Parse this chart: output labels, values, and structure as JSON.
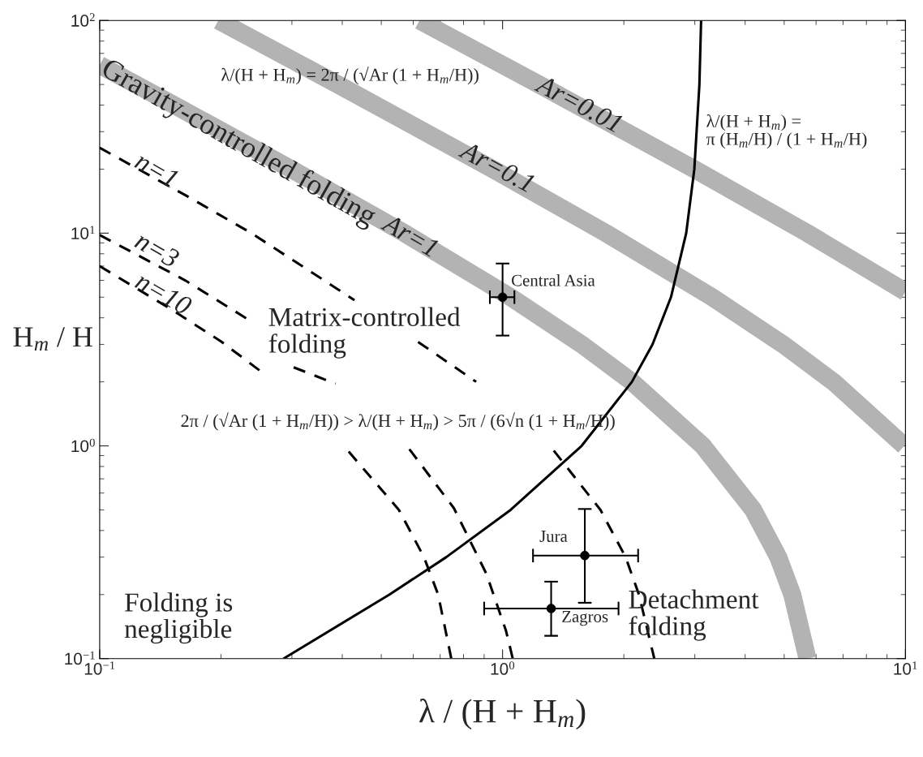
{
  "chart_data": {
    "type": "line",
    "xlabel": "λ / (H + H$_{m}$)",
    "ylabel": "H$_{m}$ / H",
    "log": "xy",
    "xlim": [
      0.1,
      10
    ],
    "ylim": [
      0.1,
      100
    ],
    "xticks": [
      {
        "value": 0.1,
        "label": "10$^{−1}$"
      },
      {
        "value": 1,
        "label": "10$^{0}$"
      },
      {
        "value": 10,
        "label": "10$^{1}$"
      }
    ],
    "yticks": [
      {
        "value": 0.1,
        "label": "10$^{−1}$"
      },
      {
        "value": 1,
        "label": "10$^{0}$"
      },
      {
        "value": 10,
        "label": "10$^{1}$"
      },
      {
        "value": 100,
        "label": "10$^{2}$"
      }
    ],
    "grid": false,
    "series": [
      {
        "name": "Ar=1",
        "color": "#b3b3b3",
        "line_style": "solid",
        "x": [
          0.1,
          0.153,
          0.299,
          0.571,
          1.047,
          1.571,
          2.094,
          3.142,
          4.189,
          4.833,
          5.236,
          5.712
        ],
        "values": [
          61.8,
          40,
          20,
          10,
          5,
          3,
          2,
          1,
          0.5,
          0.3,
          0.2,
          0.1
        ]
      },
      {
        "name": "Ar=0.1",
        "color": "#b3b3b3",
        "line_style": "solid",
        "x": [
          0.197,
          0.39,
          0.946,
          1.806,
          3.312,
          4.967,
          6.623,
          9.935
        ],
        "values": [
          100,
          50,
          20,
          10,
          5,
          3,
          2,
          1
        ]
      },
      {
        "name": "Ar=0.01",
        "color": "#b3b3b3",
        "line_style": "solid",
        "x": [
          0.622,
          1.232,
          2.992,
          5.712,
          10
        ],
        "values": [
          100,
          50,
          20,
          10,
          5.3
        ]
      },
      {
        "name": "n=1",
        "color": "#000000",
        "line_style": "dashed",
        "x": [
          0.1,
          0.164,
          0.238,
          0.429,
          0.52,
          0.617,
          0.86,
          1.1,
          1.34,
          1.75,
          2.02,
          2.18,
          2.38
        ],
        "values": [
          25.2,
          15,
          10,
          4.84,
          null,
          3.08,
          2.0,
          null,
          0.95,
          0.5,
          0.3,
          0.2,
          0.1
        ]
      },
      {
        "name": "n=3",
        "color": "#000000",
        "line_style": "dashed",
        "x": [
          0.1,
          0.163,
          0.233,
          0.27,
          0.303,
          0.385,
          0.5,
          0.587,
          0.757,
          0.912,
          1.02,
          1.06
        ],
        "values": [
          9.8,
          6,
          3.94,
          null,
          2.34,
          1.96,
          null,
          0.965,
          0.51,
          0.25,
          0.135,
          0.1
        ]
      },
      {
        "name": "n=10",
        "color": "#000000",
        "line_style": "dashed",
        "x": [
          0.1,
          0.15,
          0.2,
          0.256,
          0.35,
          0.415,
          0.553,
          0.638,
          0.692,
          0.746
        ],
        "values": [
          7.0,
          4.4,
          3.1,
          2.18,
          null,
          0.94,
          0.5,
          0.3,
          0.2,
          0.1
        ]
      },
      {
        "color": "#000000",
        "line_style": "solid",
        "x": [
          0.286,
          0.524,
          0.725,
          1.047,
          1.571,
          2.094,
          2.356,
          2.618,
          2.856,
          2.992,
          3.08,
          3.11
        ],
        "values": [
          0.1,
          0.2,
          0.3,
          0.5,
          1,
          2,
          3,
          5,
          10,
          20,
          50,
          100
        ]
      },
      {
        "name": "Central Asia",
        "type": "scatter",
        "marker": "circle",
        "color": "#000000",
        "x": [
          1.0
        ],
        "values": [
          5
        ],
        "errors": [
          [
            3.3,
            7.2
          ]
        ],
        "xerrors": [
          [
            0.93,
            1.07
          ]
        ]
      },
      {
        "name": "Jura",
        "type": "scatter",
        "marker": "circle",
        "color": "#000000",
        "x": [
          1.6
        ],
        "values": [
          0.305
        ],
        "errors": [
          [
            0.183,
            0.505
          ]
        ],
        "xerrors": [
          [
            1.19,
            2.17
          ]
        ]
      },
      {
        "name": "Zagros",
        "type": "scatter",
        "marker": "circle",
        "color": "#000000",
        "x": [
          1.32
        ],
        "values": [
          0.172
        ],
        "errors": [
          [
            0.128,
            0.23
          ]
        ],
        "xerrors": [
          [
            0.9,
            1.94
          ]
        ]
      }
    ],
    "annotations": [
      "Gravity-controlled folding",
      "Matrix-controlled\nfolding",
      "Folding is\nnegligible",
      "Detachment\nfolding",
      "λ/(H + H$_{m}$) = 2π / (√Ar (1 + H$_{m}$/H))",
      "λ/(H + H$_{m}$) =\nπ (H$_{m}$/H) / (1 + H$_{m}$/H)",
      "2π / (√Ar (1 + H$_{m}$/H)) > λ/(H + H$_{m}$) > 5π / (6√n (1 + H$_{m}$/H))"
    ]
  }
}
